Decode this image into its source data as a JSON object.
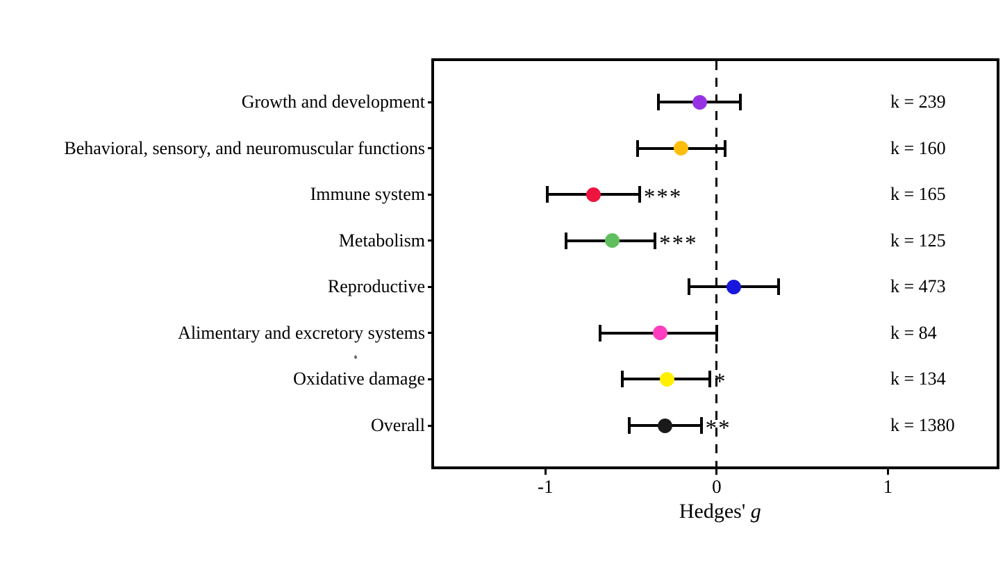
{
  "chart_data": {
    "type": "forest",
    "title": "",
    "xlabel_regular": "Hedges' ",
    "xlabel_italic": "g",
    "xlim": [
      -1.65,
      1.635
    ],
    "grid": false,
    "reference_line_x": 0,
    "axis_color": "#000000",
    "xticks": [
      {
        "value": -1,
        "label": "-1"
      },
      {
        "value": 0,
        "label": "0"
      },
      {
        "value": 1,
        "label": "1"
      }
    ],
    "rows": [
      {
        "label": "Growth and development",
        "g": -0.1,
        "ci_low": -0.34,
        "ci_high": 0.14,
        "k_label": "k = 239",
        "significance": "",
        "color": "#9632E3"
      },
      {
        "label": "Behavioral, sensory, and neuromuscular functions",
        "g": -0.21,
        "ci_low": -0.46,
        "ci_high": 0.05,
        "k_label": "k = 160",
        "significance": "",
        "color": "#FFBE0D"
      },
      {
        "label": "Immune system",
        "g": -0.72,
        "ci_low": -0.99,
        "ci_high": -0.45,
        "k_label": "k = 165",
        "significance": "***",
        "color": "#EE1440"
      },
      {
        "label": "Metabolism",
        "g": -0.61,
        "ci_low": -0.88,
        "ci_high": -0.36,
        "k_label": "k = 125",
        "significance": "***",
        "color": "#5FBF5E"
      },
      {
        "label": "Reproductive",
        "g": 0.1,
        "ci_low": -0.16,
        "ci_high": 0.36,
        "k_label": "k = 473",
        "significance": "",
        "color": "#1717DD"
      },
      {
        "label": "Alimentary and excretory systems",
        "g": -0.33,
        "ci_low": -0.68,
        "ci_high": 0.0,
        "k_label": "k = 84",
        "significance": "",
        "color": "#FF3DBE"
      },
      {
        "label": "Oxidative damage",
        "g": -0.29,
        "ci_low": -0.55,
        "ci_high": -0.04,
        "k_label": "k = 134",
        "significance": "*",
        "color": "#FFF000"
      },
      {
        "label": "Overall",
        "g": -0.3,
        "ci_low": -0.51,
        "ci_high": -0.09,
        "k_label": "k = 1380",
        "significance": "**",
        "color": "#1A1A1A"
      }
    ]
  }
}
